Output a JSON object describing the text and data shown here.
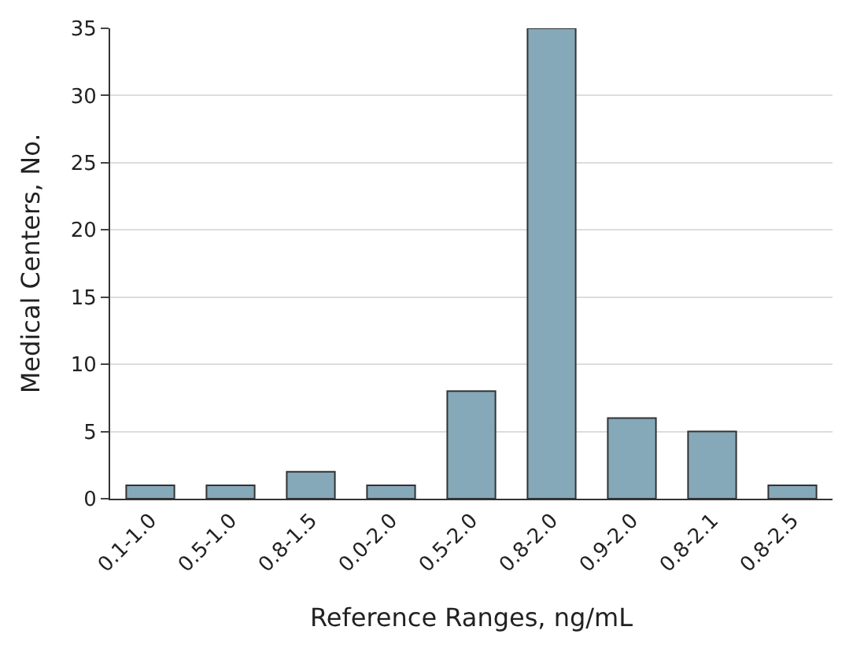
{
  "chart_data": {
    "type": "bar",
    "xlabel": "Reference Ranges, ng/mL",
    "ylabel": "Medical Centers, No.",
    "categories": [
      "0.1-1.0",
      "0.5-1.0",
      "0.8-1.5",
      "0.0-2.0",
      "0.5-2.0",
      "0.8-2.0",
      "0.9-2.0",
      "0.8-2.1",
      "0.8-2.5"
    ],
    "values": [
      1,
      1,
      2,
      1,
      8,
      35,
      6,
      5,
      1
    ],
    "color": "#86a9b9",
    "ylim": [
      0,
      35
    ],
    "yticks": [
      0,
      5,
      10,
      15,
      20,
      25,
      30,
      35
    ],
    "grid": "y"
  }
}
